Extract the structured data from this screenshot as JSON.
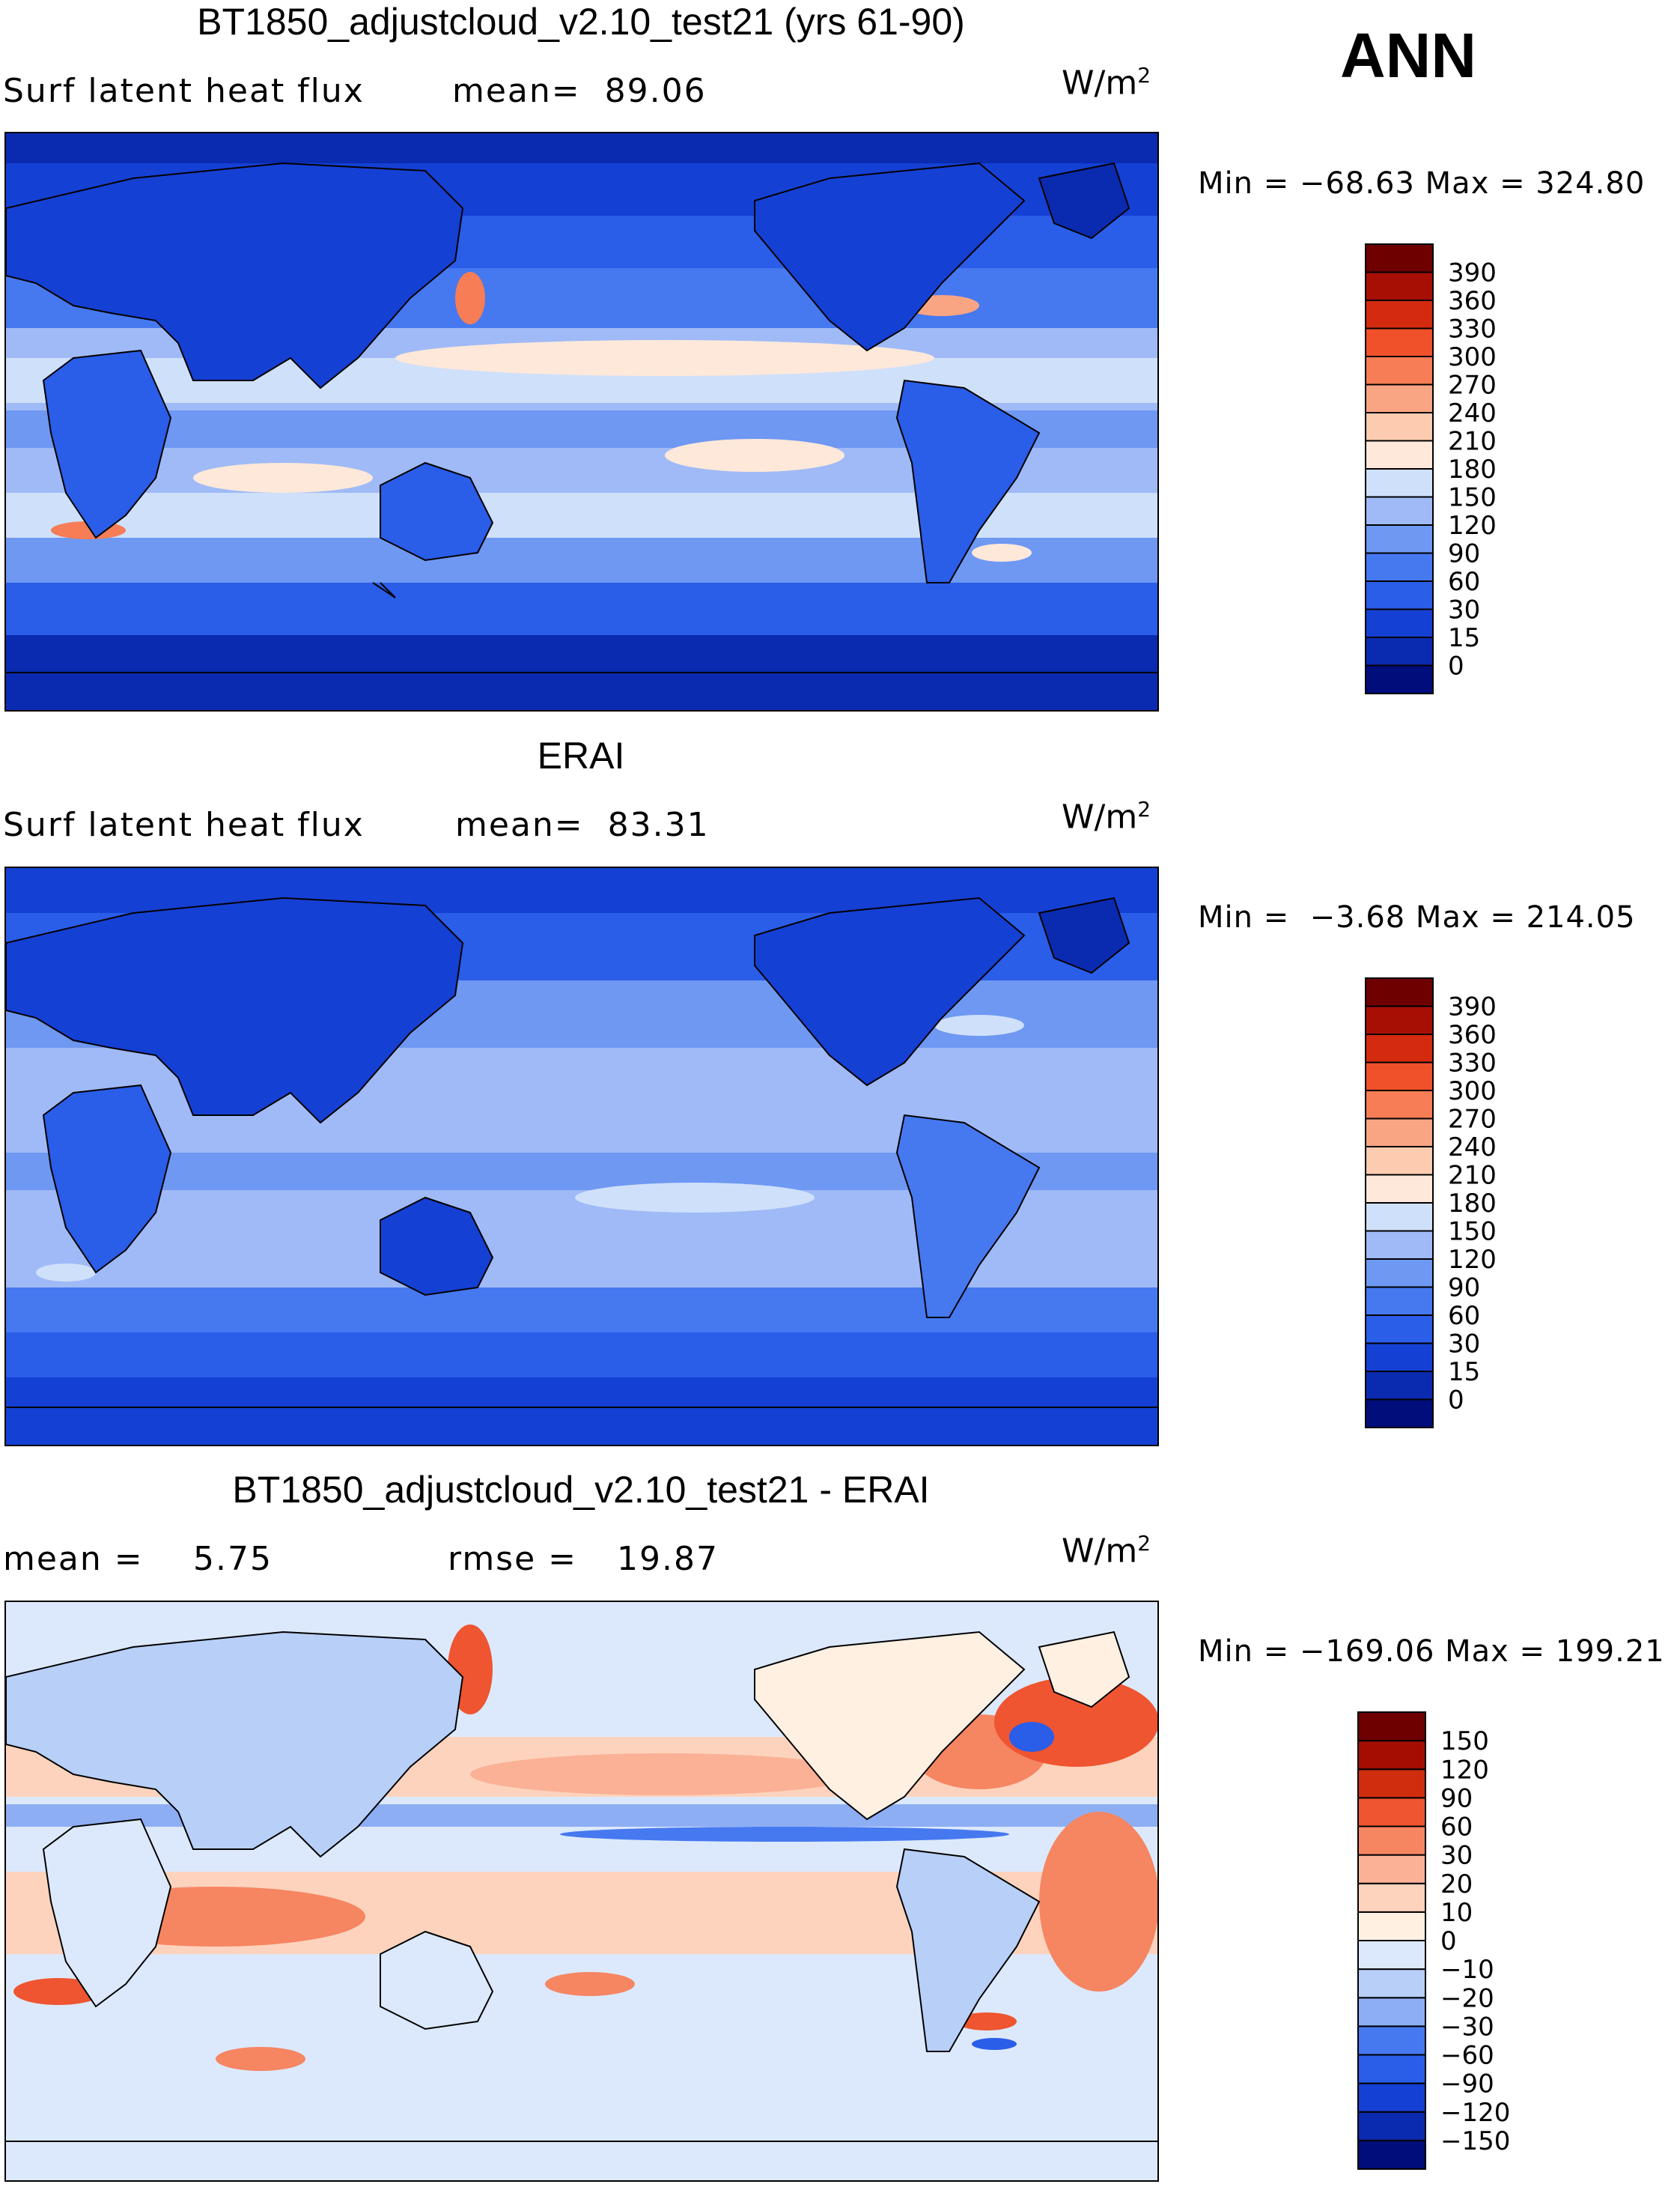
{
  "season": "ANN",
  "panels": [
    {
      "title": "BT1850_adjustcloud_v2.10_test21 (yrs 61-90)",
      "left_label": "Surf latent heat flux",
      "mid_label": "mean=  89.06",
      "units_base": "W/m",
      "units_exp": "2",
      "minmax": "Min = −68.63 Max = 324.80",
      "type": "abs"
    },
    {
      "title": "ERAI",
      "left_label": "Surf latent heat flux",
      "mid_label": "mean=  83.31",
      "units_base": "W/m",
      "units_exp": "2",
      "minmax": "Min =  −3.68 Max = 214.05",
      "type": "abs2"
    },
    {
      "title": "BT1850_adjustcloud_v2.10_test21 - ERAI",
      "left_label": "mean =",
      "left_value": "5.75",
      "mid_label": "rmse =",
      "mid_value": "19.87",
      "units_base": "W/m",
      "units_exp": "2",
      "minmax": "Min = −169.06 Max = 199.21",
      "type": "diff"
    }
  ],
  "chart_data": [
    {
      "type": "heatmap",
      "title": "BT1850_adjustcloud_v2.10_test21 (yrs 61-90)",
      "variable": "Surf latent heat flux",
      "units": "W/m2",
      "mean": 89.06,
      "min": -68.63,
      "max": 324.8,
      "colorbar_levels": [
        0,
        15,
        30,
        60,
        90,
        120,
        150,
        180,
        210,
        240,
        270,
        300,
        330,
        360,
        390
      ],
      "colors": [
        "#000d7a",
        "#0a2bb0",
        "#1540d4",
        "#2a5de8",
        "#4678f0",
        "#6e98f2",
        "#9fbaf6",
        "#cfe0fb",
        "#fde8da",
        "#fccbb0",
        "#f9a583",
        "#f67d55",
        "#f0502a",
        "#d42a10",
        "#a80f04",
        "#6f0000"
      ]
    },
    {
      "type": "heatmap",
      "title": "ERAI",
      "variable": "Surf latent heat flux",
      "units": "W/m2",
      "mean": 83.31,
      "min": -3.68,
      "max": 214.05,
      "colorbar_levels": [
        0,
        15,
        30,
        60,
        90,
        120,
        150,
        180,
        210,
        240,
        270,
        300,
        330,
        360,
        390
      ],
      "colors": [
        "#000d7a",
        "#0a2bb0",
        "#1540d4",
        "#2a5de8",
        "#4678f0",
        "#6e98f2",
        "#9fbaf6",
        "#cfe0fb",
        "#fde8da",
        "#fccbb0",
        "#f9a583",
        "#f67d55",
        "#f0502a",
        "#d42a10",
        "#a80f04",
        "#6f0000"
      ]
    },
    {
      "type": "heatmap",
      "title": "BT1850_adjustcloud_v2.10_test21 - ERAI",
      "units": "W/m2",
      "mean": 5.75,
      "rmse": 19.87,
      "min": -169.06,
      "max": 199.21,
      "colorbar_levels": [
        -150,
        -120,
        -90,
        -60,
        -30,
        -20,
        -10,
        0,
        10,
        20,
        30,
        60,
        90,
        120,
        150
      ],
      "colors": [
        "#000d7a",
        "#0a2bb0",
        "#1540d4",
        "#2a5de8",
        "#4678f0",
        "#8eaef4",
        "#b8cff8",
        "#dce9fc",
        "#fff0e2",
        "#fdd3bd",
        "#fab195",
        "#f68562",
        "#ee5530",
        "#d02c0e",
        "#a40e02",
        "#6f0000"
      ]
    }
  ]
}
